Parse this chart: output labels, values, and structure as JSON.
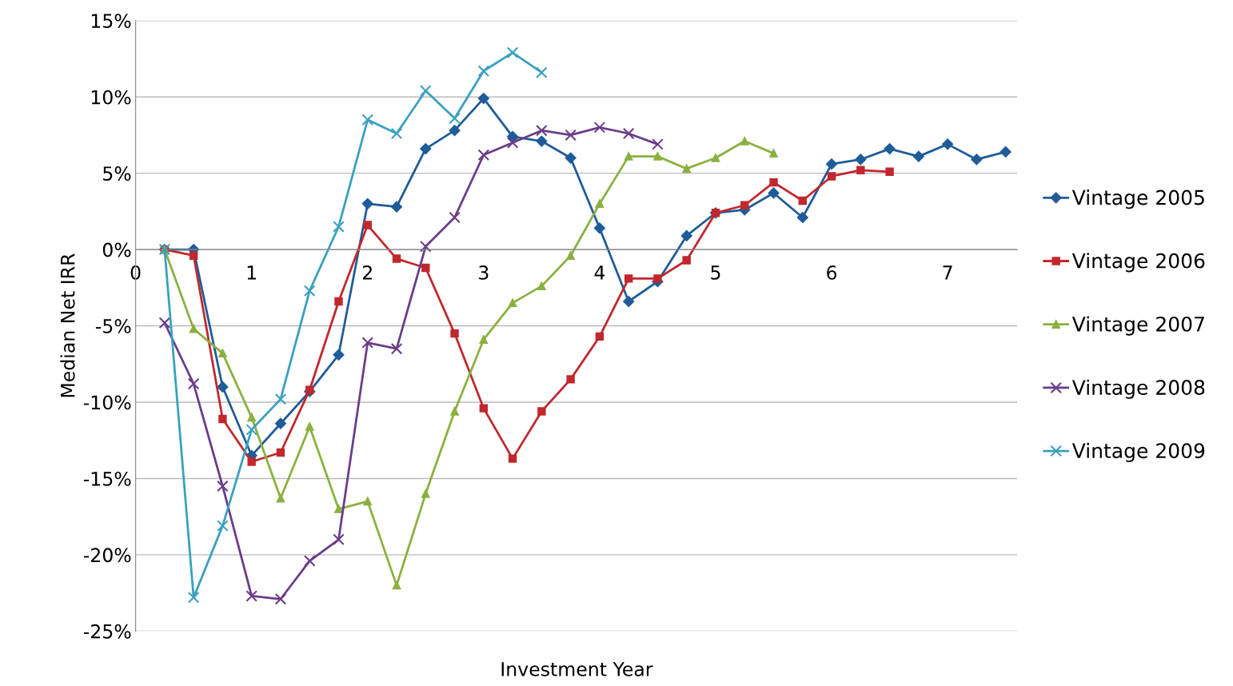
{
  "chart_data": {
    "type": "line",
    "xlabel": "Investment Year",
    "ylabel": "Median Net IRR",
    "xlim": [
      0,
      7.6
    ],
    "xticks": [
      0,
      1,
      2,
      3,
      4,
      5,
      6,
      7
    ],
    "ylim": [
      -25,
      15
    ],
    "yticks": [
      {
        "value": -25,
        "label": "-25%"
      },
      {
        "value": -20,
        "label": "-20%"
      },
      {
        "value": -15,
        "label": "-15%"
      },
      {
        "value": -10,
        "label": "-10%"
      },
      {
        "value": -5,
        "label": "-5%"
      },
      {
        "value": 0,
        "label": "0%"
      },
      {
        "value": 5,
        "label": "5%"
      },
      {
        "value": 10,
        "label": "10%"
      },
      {
        "value": 15,
        "label": "15%"
      }
    ],
    "grid": "y",
    "legend": "right",
    "line_style": "solid",
    "series": [
      {
        "name": "Vintage 2005",
        "color": "#1f5c99",
        "marker": "diamond",
        "x": [
          0.25,
          0.5,
          0.75,
          1.0,
          1.25,
          1.5,
          1.75,
          2.0,
          2.25,
          2.5,
          2.75,
          3.0,
          3.25,
          3.5,
          3.75,
          4.0,
          4.25,
          4.5,
          4.75,
          5.0,
          5.25,
          5.5,
          5.75,
          6.0,
          6.25,
          6.5,
          6.75,
          7.0,
          7.25,
          7.5
        ],
        "values": [
          0,
          0,
          -9.0,
          -13.5,
          -11.4,
          -9.3,
          -6.9,
          3.0,
          2.8,
          6.6,
          7.8,
          9.9,
          7.4,
          7.1,
          6.0,
          1.4,
          -3.4,
          -2.1,
          0.9,
          2.4,
          2.6,
          3.7,
          2.1,
          5.6,
          5.9,
          6.6,
          6.1,
          6.9,
          5.9,
          6.4
        ]
      },
      {
        "name": "Vintage 2006",
        "color": "#c0282d",
        "marker": "square",
        "x": [
          0.25,
          0.5,
          0.75,
          1.0,
          1.25,
          1.5,
          1.75,
          2.0,
          2.25,
          2.5,
          2.75,
          3.0,
          3.25,
          3.5,
          3.75,
          4.0,
          4.25,
          4.5,
          4.75,
          5.0,
          5.25,
          5.5,
          5.75,
          6.0,
          6.25,
          6.5
        ],
        "values": [
          0,
          -0.4,
          -11.1,
          -13.9,
          -13.3,
          -9.2,
          -3.4,
          1.6,
          -0.6,
          -1.2,
          -5.5,
          -10.4,
          -13.7,
          -10.6,
          -8.5,
          -5.7,
          -1.9,
          -1.9,
          -0.7,
          2.4,
          2.9,
          4.4,
          3.2,
          4.8,
          5.2,
          5.1
        ]
      },
      {
        "name": "Vintage 2007",
        "color": "#8bb040",
        "marker": "triangle",
        "x": [
          0.25,
          0.5,
          0.75,
          1.0,
          1.25,
          1.5,
          1.75,
          2.0,
          2.25,
          2.5,
          2.75,
          3.0,
          3.25,
          3.5,
          3.75,
          4.0,
          4.25,
          4.5,
          4.75,
          5.0,
          5.25,
          5.5
        ],
        "values": [
          0,
          -5.2,
          -6.8,
          -11.0,
          -16.3,
          -11.6,
          -17.0,
          -16.5,
          -22.0,
          -16.0,
          -10.6,
          -5.9,
          -3.5,
          -2.4,
          -0.4,
          3.0,
          6.1,
          6.1,
          5.3,
          6.0,
          7.1,
          6.3
        ]
      },
      {
        "name": "Vintage 2008",
        "color": "#6a3d8a",
        "marker": "cross",
        "x": [
          0.25,
          0.5,
          0.75,
          1.0,
          1.25,
          1.5,
          1.75,
          2.0,
          2.25,
          2.5,
          2.75,
          3.0,
          3.25,
          3.5,
          3.75,
          4.0,
          4.25,
          4.5
        ],
        "values": [
          -4.8,
          -8.8,
          -15.5,
          -22.7,
          -22.9,
          -20.4,
          -19.0,
          -6.1,
          -6.5,
          0.2,
          2.1,
          6.2,
          7.0,
          7.8,
          7.5,
          8.0,
          7.6,
          6.9
        ]
      },
      {
        "name": "Vintage 2009",
        "color": "#3aa0bf",
        "marker": "cross",
        "x": [
          0.25,
          0.5,
          0.75,
          1.0,
          1.25,
          1.5,
          1.75,
          2.0,
          2.25,
          2.5,
          2.75,
          3.0,
          3.25,
          3.5
        ],
        "values": [
          0,
          -22.8,
          -18.1,
          -11.8,
          -9.8,
          -2.7,
          1.5,
          8.5,
          7.6,
          10.4,
          8.6,
          11.7,
          12.9,
          11.6
        ]
      }
    ]
  }
}
